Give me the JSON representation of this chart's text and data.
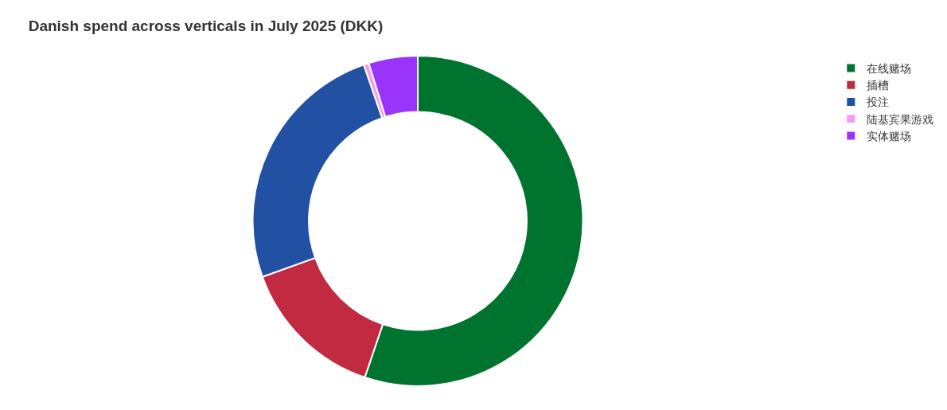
{
  "chart_data": {
    "type": "donut",
    "title": "Danish spend across verticals in July 2025 (DKK)",
    "categories": [
      "在线赌场",
      "插槽",
      "投注",
      "陆基宾果游戏",
      "实体赌场"
    ],
    "values": [
      55.2,
      14.3,
      25.2,
      0.5,
      4.8
    ],
    "colors": [
      "#00732f",
      "#c12a40",
      "#2251a3",
      "#f59bf2",
      "#9b34fb"
    ],
    "legend": "top right"
  }
}
